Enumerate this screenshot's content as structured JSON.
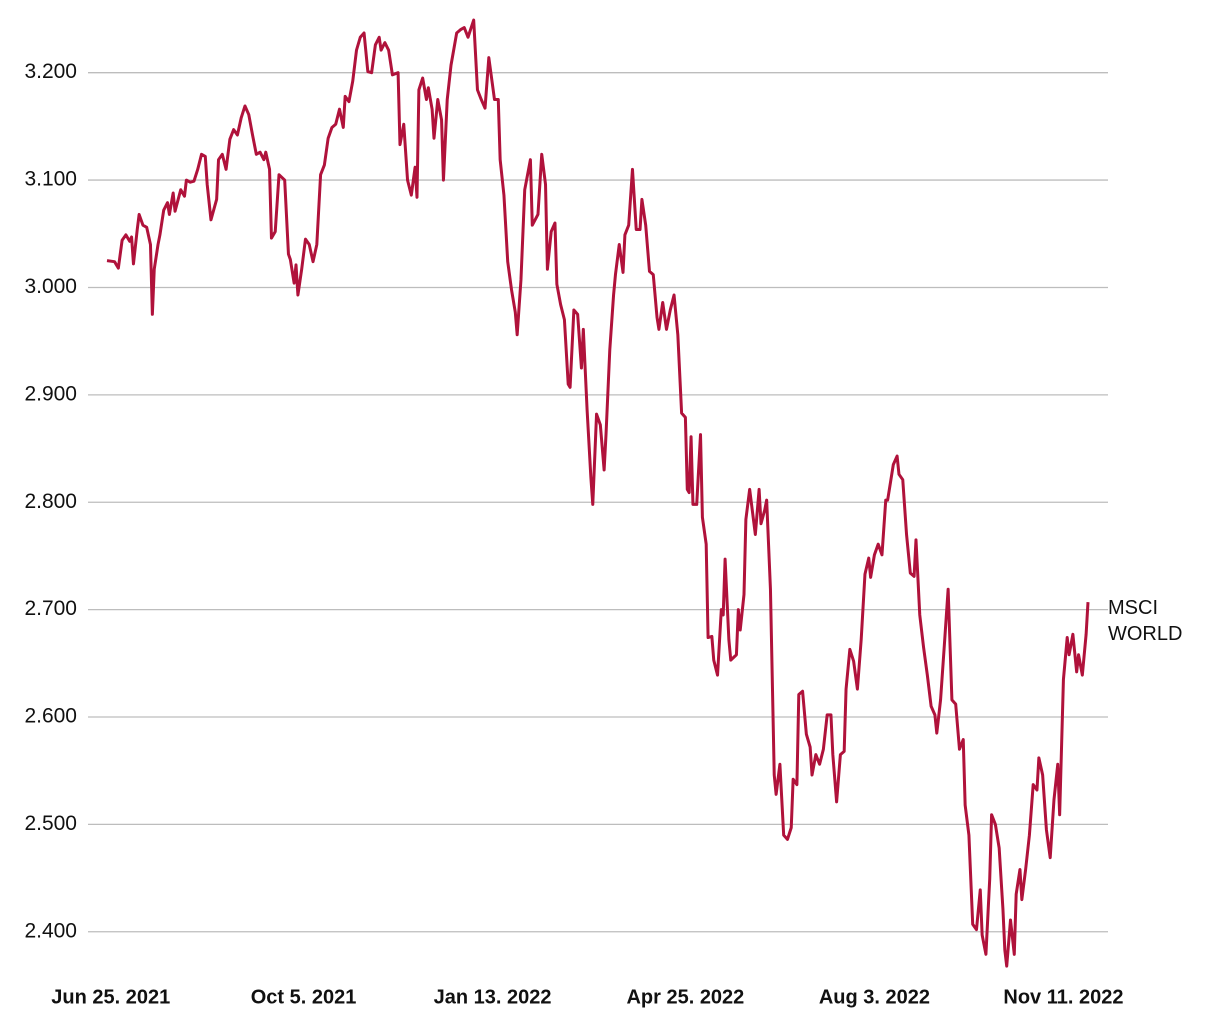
{
  "chart_data": {
    "type": "line",
    "x": [
      "2021-06-23",
      "2021-06-27",
      "2021-06-29",
      "2021-07-01",
      "2021-07-03",
      "2021-07-05",
      "2021-07-06",
      "2021-07-07",
      "2021-07-09",
      "2021-07-10",
      "2021-07-12",
      "2021-07-14",
      "2021-07-16",
      "2021-07-17",
      "2021-07-18",
      "2021-07-20",
      "2021-07-21",
      "2021-07-23",
      "2021-07-25",
      "2021-07-26",
      "2021-07-28",
      "2021-07-29",
      "2021-08-01",
      "2021-08-03",
      "2021-08-04",
      "2021-08-06",
      "2021-08-08",
      "2021-08-10",
      "2021-08-12",
      "2021-08-14",
      "2021-08-15",
      "2021-08-17",
      "2021-08-20",
      "2021-08-21",
      "2021-08-23",
      "2021-08-25",
      "2021-08-27",
      "2021-08-29",
      "2021-08-31",
      "2021-09-02",
      "2021-09-04",
      "2021-09-06",
      "2021-09-08",
      "2021-09-10",
      "2021-09-12",
      "2021-09-14",
      "2021-09-15",
      "2021-09-17",
      "2021-09-18",
      "2021-09-20",
      "2021-09-22",
      "2021-09-25",
      "2021-09-27",
      "2021-09-28",
      "2021-09-30",
      "2021-10-01",
      "2021-10-02",
      "2021-10-04",
      "2021-10-06",
      "2021-10-08",
      "2021-10-10",
      "2021-10-12",
      "2021-10-14",
      "2021-10-16",
      "2021-10-18",
      "2021-10-20",
      "2021-10-22",
      "2021-10-24",
      "2021-10-26",
      "2021-10-27",
      "2021-10-29",
      "2021-10-31",
      "2021-11-02",
      "2021-11-04",
      "2021-11-06",
      "2021-11-08",
      "2021-11-10",
      "2021-11-12",
      "2021-11-14",
      "2021-11-15",
      "2021-11-17",
      "2021-11-19",
      "2021-11-21",
      "2021-11-24",
      "2021-11-25",
      "2021-11-27",
      "2021-11-29",
      "2021-12-01",
      "2021-12-03",
      "2021-12-04",
      "2021-12-05",
      "2021-12-07",
      "2021-12-09",
      "2021-12-10",
      "2021-12-12",
      "2021-12-13",
      "2021-12-15",
      "2021-12-17",
      "2021-12-18",
      "2021-12-20",
      "2021-12-22",
      "2021-12-25",
      "2021-12-27",
      "2021-12-29",
      "2021-12-31",
      "2022-01-03",
      "2022-01-05",
      "2022-01-07",
      "2022-01-09",
      "2022-01-11",
      "2022-01-14",
      "2022-01-16",
      "2022-01-17",
      "2022-01-19",
      "2022-01-21",
      "2022-01-23",
      "2022-01-25",
      "2022-01-26",
      "2022-01-28",
      "2022-01-30",
      "2022-02-02",
      "2022-02-03",
      "2022-02-06",
      "2022-02-08",
      "2022-02-10",
      "2022-02-11",
      "2022-02-13",
      "2022-02-15",
      "2022-02-16",
      "2022-02-18",
      "2022-02-20",
      "2022-02-22",
      "2022-02-23",
      "2022-02-25",
      "2022-02-27",
      "2022-03-01",
      "2022-03-02",
      "2022-03-04",
      "2022-03-06",
      "2022-03-07",
      "2022-03-09",
      "2022-03-11",
      "2022-03-13",
      "2022-03-14",
      "2022-03-16",
      "2022-03-18",
      "2022-03-19",
      "2022-03-21",
      "2022-03-23",
      "2022-03-24",
      "2022-03-26",
      "2022-03-28",
      "2022-03-30",
      "2022-04-01",
      "2022-04-02",
      "2022-04-04",
      "2022-04-06",
      "2022-04-08",
      "2022-04-10",
      "2022-04-11",
      "2022-04-13",
      "2022-04-15",
      "2022-04-17",
      "2022-04-19",
      "2022-04-21",
      "2022-04-23",
      "2022-04-25",
      "2022-04-26",
      "2022-04-27",
      "2022-04-28",
      "2022-04-29",
      "2022-05-01",
      "2022-05-03",
      "2022-05-04",
      "2022-05-06",
      "2022-05-07",
      "2022-05-09",
      "2022-05-10",
      "2022-05-12",
      "2022-05-14",
      "2022-05-15",
      "2022-05-16",
      "2022-05-18",
      "2022-05-19",
      "2022-05-22",
      "2022-05-23",
      "2022-05-24",
      "2022-05-26",
      "2022-05-27",
      "2022-05-29",
      "2022-05-31",
      "2022-06-01",
      "2022-06-03",
      "2022-06-04",
      "2022-06-06",
      "2022-06-07",
      "2022-06-09",
      "2022-06-11",
      "2022-06-12",
      "2022-06-14",
      "2022-06-16",
      "2022-06-18",
      "2022-06-20",
      "2022-06-21",
      "2022-06-23",
      "2022-06-24",
      "2022-06-26",
      "2022-06-28",
      "2022-06-30",
      "2022-07-01",
      "2022-07-03",
      "2022-07-05",
      "2022-07-07",
      "2022-07-09",
      "2022-07-11",
      "2022-07-12",
      "2022-07-14",
      "2022-07-16",
      "2022-07-18",
      "2022-07-19",
      "2022-07-21",
      "2022-07-23",
      "2022-07-25",
      "2022-07-27",
      "2022-07-29",
      "2022-07-31",
      "2022-08-01",
      "2022-08-03",
      "2022-08-05",
      "2022-08-07",
      "2022-08-09",
      "2022-08-10",
      "2022-08-13",
      "2022-08-15",
      "2022-08-16",
      "2022-08-18",
      "2022-08-20",
      "2022-08-22",
      "2022-08-24",
      "2022-08-25",
      "2022-08-27",
      "2022-08-29",
      "2022-08-31",
      "2022-09-02",
      "2022-09-04",
      "2022-09-05",
      "2022-09-07",
      "2022-09-09",
      "2022-09-11",
      "2022-09-13",
      "2022-09-15",
      "2022-09-17",
      "2022-09-19",
      "2022-09-20",
      "2022-09-22",
      "2022-09-24",
      "2022-09-26",
      "2022-09-28",
      "2022-09-29",
      "2022-10-01",
      "2022-10-03",
      "2022-10-04",
      "2022-10-06",
      "2022-10-08",
      "2022-10-10",
      "2022-10-11",
      "2022-10-12",
      "2022-10-14",
      "2022-10-16",
      "2022-10-17",
      "2022-10-19",
      "2022-10-20",
      "2022-10-22",
      "2022-10-24",
      "2022-10-26",
      "2022-10-28",
      "2022-10-29",
      "2022-10-31",
      "2022-11-02",
      "2022-11-04",
      "2022-11-06",
      "2022-11-08",
      "2022-11-09",
      "2022-11-11",
      "2022-11-13",
      "2022-11-14",
      "2022-11-16",
      "2022-11-18",
      "2022-11-19",
      "2022-11-21",
      "2022-11-23",
      "2022-11-24"
    ],
    "series": [
      {
        "name": "MSCI WORLD",
        "color": "#b0123b",
        "values": [
          3025,
          3024,
          3018,
          3044,
          3049,
          3043,
          3047,
          3022,
          3054,
          3068,
          3058,
          3056,
          3040,
          2975,
          3017,
          3040,
          3049,
          3072,
          3079,
          3068,
          3088,
          3071,
          3091,
          3085,
          3100,
          3098,
          3099,
          3110,
          3124,
          3122,
          3096,
          3063,
          3082,
          3119,
          3124,
          3110,
          3138,
          3147,
          3142,
          3158,
          3169,
          3161,
          3142,
          3124,
          3126,
          3119,
          3126,
          3110,
          3046,
          3052,
          3105,
          3100,
          3031,
          3026,
          3004,
          3021,
          2993,
          3017,
          3045,
          3040,
          3024,
          3040,
          3105,
          3114,
          3139,
          3149,
          3152,
          3166,
          3149,
          3178,
          3173,
          3192,
          3221,
          3233,
          3237,
          3201,
          3200,
          3226,
          3233,
          3221,
          3228,
          3221,
          3198,
          3200,
          3133,
          3152,
          3100,
          3086,
          3112,
          3084,
          3184,
          3195,
          3175,
          3186,
          3166,
          3139,
          3175,
          3156,
          3100,
          3175,
          3207,
          3237,
          3240,
          3242,
          3233,
          3249,
          3184,
          3175,
          3167,
          3214,
          3175,
          3175,
          3119,
          3086,
          3024,
          2998,
          2977,
          2956,
          3007,
          3091,
          3119,
          3058,
          3068,
          3124,
          3096,
          3017,
          3052,
          3060,
          3003,
          2984,
          2970,
          2910,
          2907,
          2979,
          2975,
          2925,
          2961,
          2886,
          2823,
          2798,
          2882,
          2872,
          2830,
          2863,
          2942,
          2993,
          3012,
          3040,
          3014,
          3049,
          3058,
          3110,
          3054,
          3054,
          3082,
          3058,
          3015,
          3012,
          2972,
          2961,
          2986,
          2961,
          2979,
          2993,
          2956,
          2883,
          2879,
          2812,
          2809,
          2861,
          2798,
          2798,
          2863,
          2786,
          2761,
          2674,
          2675,
          2653,
          2639,
          2700,
          2695,
          2747,
          2672,
          2653,
          2658,
          2700,
          2681,
          2714,
          2784,
          2812,
          2784,
          2770,
          2812,
          2780,
          2793,
          2802,
          2719,
          2546,
          2528,
          2556,
          2490,
          2486,
          2497,
          2542,
          2537,
          2621,
          2624,
          2584,
          2572,
          2546,
          2565,
          2556,
          2570,
          2602,
          2602,
          2565,
          2521,
          2565,
          2568,
          2626,
          2663,
          2652,
          2626,
          2672,
          2733,
          2748,
          2730,
          2751,
          2761,
          2751,
          2802,
          2802,
          2835,
          2843,
          2826,
          2821,
          2770,
          2734,
          2731,
          2765,
          2695,
          2665,
          2639,
          2610,
          2602,
          2585,
          2616,
          2667,
          2719,
          2616,
          2612,
          2570,
          2579,
          2518,
          2490,
          2407,
          2402,
          2439,
          2397,
          2379,
          2449,
          2509,
          2500,
          2478,
          2421,
          2383,
          2368,
          2411,
          2379,
          2435,
          2458,
          2430,
          2458,
          2490,
          2537,
          2532,
          2562,
          2546,
          2495,
          2469,
          2523,
          2556,
          2509,
          2635,
          2674,
          2658,
          2677,
          2642,
          2658,
          2639,
          2677,
          2707
        ]
      }
    ],
    "xlim": [
      "2021-06-23",
      "2022-11-24"
    ],
    "xticks": [
      {
        "value": "2021-06-25",
        "label": "Jun 25. 2021"
      },
      {
        "value": "2021-10-05",
        "label": "Oct 5. 2021"
      },
      {
        "value": "2022-01-13",
        "label": "Jan 13. 2022"
      },
      {
        "value": "2022-04-25",
        "label": "Apr 25. 2022"
      },
      {
        "value": "2022-08-03",
        "label": "Aug 3. 2022"
      },
      {
        "value": "2022-11-11",
        "label": "Nov 11. 2022"
      }
    ],
    "ylim": [
      2370,
      3250
    ],
    "yticks": [
      {
        "value": 2400,
        "label": "2.400"
      },
      {
        "value": 2500,
        "label": "2.500"
      },
      {
        "value": 2600,
        "label": "2.600"
      },
      {
        "value": 2700,
        "label": "2.700"
      },
      {
        "value": 2800,
        "label": "2.800"
      },
      {
        "value": 2900,
        "label": "2.900"
      },
      {
        "value": 3000,
        "label": "3.000"
      },
      {
        "value": 3100,
        "label": "3.100"
      },
      {
        "value": 3200,
        "label": "3.200"
      }
    ],
    "grid": true
  }
}
